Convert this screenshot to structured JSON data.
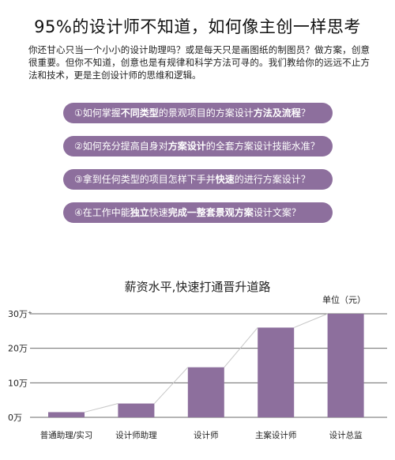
{
  "headline": "95%的设计师不知道，如何像主创一样思考",
  "intro": "你还甘心只当一个小小的设计助理吗？或是每天只是画图纸的制图员？做方案，创意很重要。但你不知道，创意也是有规律和科学方法可寻的。我们教给你的远远不止方法和技术，更是主创设计师的思维和逻辑。",
  "questions": [
    [
      {
        "t": "①如何掌握",
        "b": false
      },
      {
        "t": "不同类型",
        "b": true
      },
      {
        "t": "的景观项目的方案设计",
        "b": false
      },
      {
        "t": "方法及流程",
        "b": true
      },
      {
        "t": "？",
        "b": false
      }
    ],
    [
      {
        "t": "②如何充分提高自身对",
        "b": false
      },
      {
        "t": "方案设计",
        "b": true
      },
      {
        "t": "的全套方案设计技能水准？",
        "b": false
      }
    ],
    [
      {
        "t": "③拿到任何类型的项目怎样下手并",
        "b": false
      },
      {
        "t": "快速",
        "b": true
      },
      {
        "t": "的进行方案设计？",
        "b": false
      }
    ],
    [
      {
        "t": "④在工作中能",
        "b": false
      },
      {
        "t": "独立",
        "b": true
      },
      {
        "t": "快速",
        "b": false
      },
      {
        "t": "完成一整套景观方案",
        "b": true
      },
      {
        "t": "设计文案？",
        "b": false
      }
    ]
  ],
  "colors": {
    "accent": "#8d6f9d",
    "bar": "#8d6f9d",
    "connector": "#c7c7c7"
  },
  "chart_data": {
    "type": "bar",
    "title": "薪资水平,快速打通晋升道路",
    "unit_label": "单位（元）",
    "categories": [
      "普通助理/实习",
      "设计师助理",
      "设计师",
      "主案设计师",
      "设计总监"
    ],
    "values": [
      1.5,
      4,
      14.5,
      26,
      30
    ],
    "y_ticks": [
      {
        "v": 0,
        "label": "0万"
      },
      {
        "v": 10,
        "label": "10万"
      },
      {
        "v": 20,
        "label": "20万"
      },
      {
        "v": 30,
        "label": "30万⁺"
      }
    ],
    "ylim": [
      0,
      30
    ],
    "grid": true
  }
}
